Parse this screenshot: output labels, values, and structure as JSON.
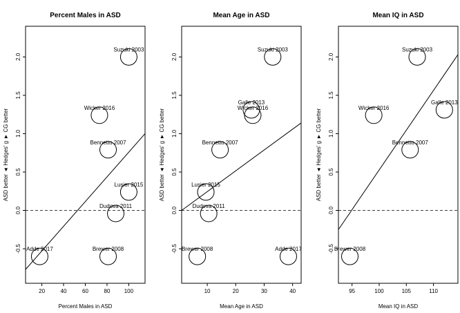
{
  "chart_data": [
    {
      "type": "scatter",
      "title": "Percent Males in ASD",
      "xlabel": "Percent Males in ASD",
      "ylabel": "ASD better ◄ Hedges' g ► CG better",
      "xlim": [
        5,
        115
      ],
      "ylim": [
        -0.95,
        2.4
      ],
      "xticks": [
        20,
        40,
        60,
        80,
        100
      ],
      "yticks": [
        -0.5,
        0.0,
        0.5,
        1.0,
        1.5,
        2.0
      ],
      "reference_y": 0,
      "fit_line": [
        [
          5,
          -0.77
        ],
        [
          115,
          1.0
        ]
      ],
      "points": [
        {
          "label": "Suzuki 2003",
          "x": 100,
          "y": 2.0
        },
        {
          "label": "Wicker 2016",
          "x": 73,
          "y": 1.24
        },
        {
          "label": "Bennetto 2007",
          "x": 81,
          "y": 0.79
        },
        {
          "label": "Lusier 2015",
          "x": 100,
          "y": 0.24
        },
        {
          "label": "Dudova 2011",
          "x": 88,
          "y": -0.04
        },
        {
          "label": "Adde 2017",
          "x": 18,
          "y": -0.6
        },
        {
          "label": "Brewer 2008",
          "x": 81,
          "y": -0.6
        }
      ]
    },
    {
      "type": "scatter",
      "title": "Mean Age in ASD",
      "xlabel": "Mean Age in ASD",
      "ylabel": "ASD better ◄ Hedges' g ► CG better",
      "xlim": [
        1,
        43
      ],
      "ylim": [
        -0.95,
        2.4
      ],
      "xticks": [
        10,
        20,
        30,
        40
      ],
      "yticks": [
        -0.5,
        0.0,
        0.5,
        1.0,
        1.5,
        2.0
      ],
      "reference_y": 0,
      "fit_line": [
        [
          1,
          0.0
        ],
        [
          43,
          1.14
        ]
      ],
      "points": [
        {
          "label": "Suzuki 2003",
          "x": 33,
          "y": 2.0
        },
        {
          "label": "Galle 2013",
          "x": 25.5,
          "y": 1.31
        },
        {
          "label": "Wicker 2016",
          "x": 26,
          "y": 1.24
        },
        {
          "label": "Bennetto 2007",
          "x": 14.5,
          "y": 0.79
        },
        {
          "label": "Lusier 2015",
          "x": 9.5,
          "y": 0.24
        },
        {
          "label": "Dudova 2011",
          "x": 10.5,
          "y": -0.04
        },
        {
          "label": "Brewer 2008",
          "x": 6.5,
          "y": -0.6
        },
        {
          "label": "Adde 2017",
          "x": 38.5,
          "y": -0.6
        }
      ]
    },
    {
      "type": "scatter",
      "title": "Mean IQ in ASD",
      "xlabel": "Mean IQ in ASD",
      "ylabel": "ASD better ◄ Hedges' g ► CG better",
      "xlim": [
        92.5,
        114.5
      ],
      "ylim": [
        -0.95,
        2.4
      ],
      "xticks": [
        95,
        100,
        105,
        110
      ],
      "yticks": [
        -0.5,
        0.0,
        0.5,
        1.0,
        1.5,
        2.0
      ],
      "reference_y": 0,
      "fit_line": [
        [
          92.5,
          -0.25
        ],
        [
          114.5,
          2.03
        ]
      ],
      "points": [
        {
          "label": "Suzuki 2003",
          "x": 107,
          "y": 2.0
        },
        {
          "label": "Galle 2013",
          "x": 112,
          "y": 1.31
        },
        {
          "label": "Wicker 2016",
          "x": 99,
          "y": 1.24
        },
        {
          "label": "Bennetto 2007",
          "x": 105.7,
          "y": 0.79
        },
        {
          "label": "Brewer 2008",
          "x": 94.6,
          "y": -0.6
        }
      ]
    }
  ]
}
